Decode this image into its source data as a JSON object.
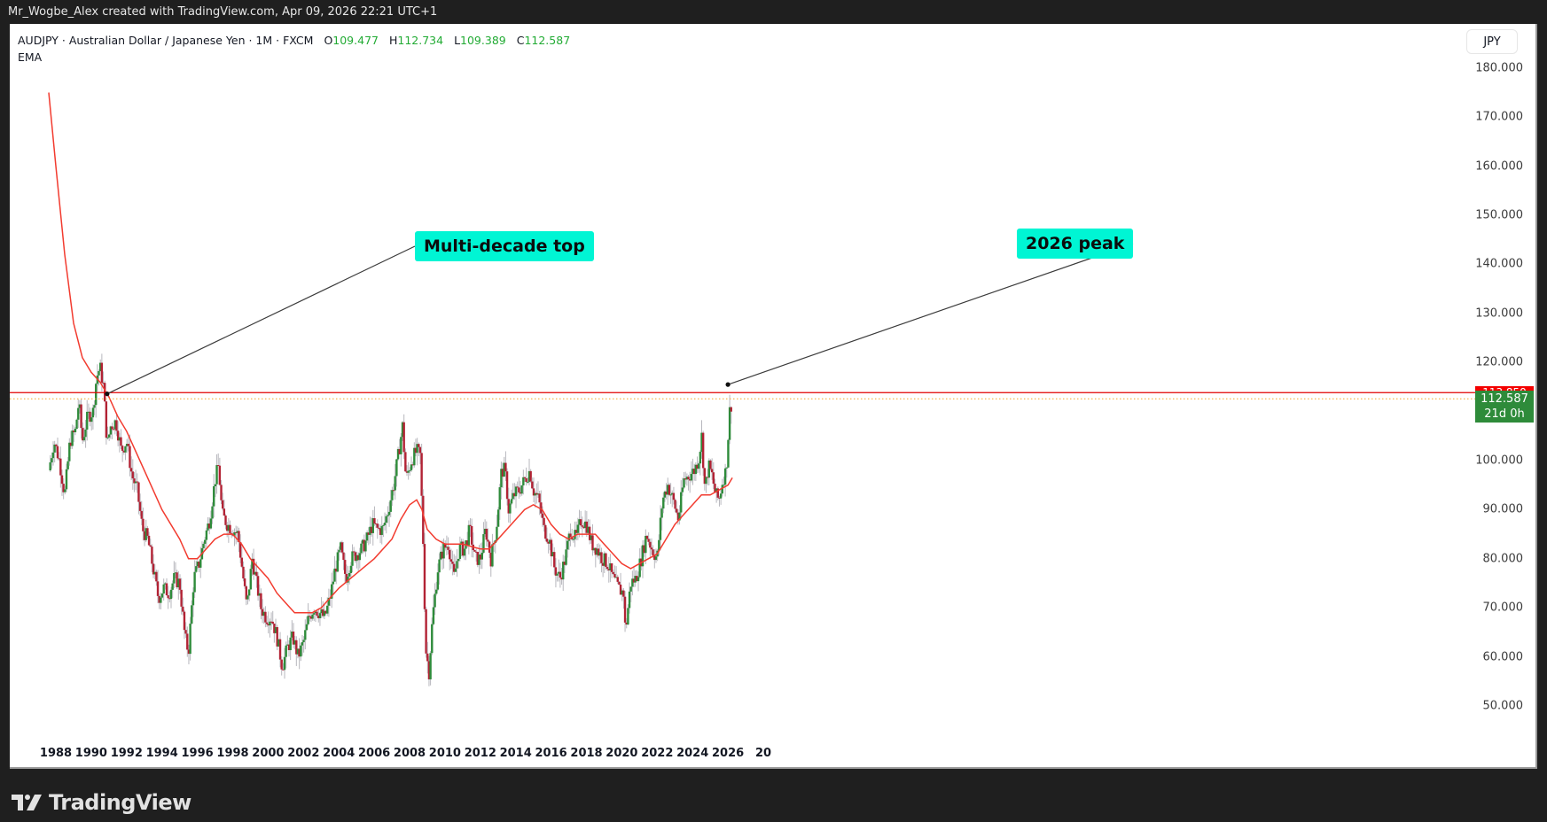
{
  "topbar": {
    "caption": "Mr_Wogbe_Alex created with TradingView.com, Apr 09, 2026 22:21 UTC+1"
  },
  "legend": {
    "symbol_line": "AUDJPY · Australian Dollar / Japanese Yen · 1M · FXCM",
    "open_label": "O",
    "open": "109.477",
    "high_label": "H",
    "high": "112.734",
    "low_label": "L",
    "low": "109.389",
    "close_label": "C",
    "close": "112.587",
    "indicator": "EMA"
  },
  "price_scale": {
    "currency": "JPY",
    "ticks": [
      "180.000",
      "170.000",
      "160.000",
      "150.000",
      "140.000",
      "130.000",
      "120.000",
      "100.000",
      "90.000",
      "80.000",
      "70.000",
      "60.000",
      "50.000"
    ],
    "last_price": "112.587",
    "countdown": "21d 0h",
    "hline_label": "113.850"
  },
  "time_scale": {
    "ticks": [
      "1988",
      "1990",
      "1992",
      "1994",
      "1996",
      "1998",
      "2000",
      "2002",
      "2004",
      "2006",
      "2008",
      "2010",
      "2012",
      "2014",
      "2016",
      "2018",
      "2020",
      "2022",
      "2024",
      "2026",
      "20"
    ]
  },
  "annotations": [
    {
      "text": "Multi-decade top",
      "anchor_year": 1990.9,
      "anchor_price": 113.6
    },
    {
      "text": "2026 peak",
      "anchor_year": 2026.0,
      "anchor_price": 115.5
    }
  ],
  "colors": {
    "up": "#2e8b3a",
    "down": "#b22234",
    "ema": "#f23b2f",
    "hline": "#e00000",
    "last_price_line": "#f5a623",
    "note_bg": "#00f5d4",
    "wick": "#b7b7bd"
  },
  "footer": {
    "brand": "TradingView"
  },
  "chart_data": {
    "type": "candlestick",
    "title": "AUDJPY · Australian Dollar / Japanese Yen · 1M · FXCM",
    "xlabel": "",
    "ylabel": "JPY",
    "ylim": [
      45,
      185
    ],
    "x_range": [
      1987.6,
      2027.5
    ],
    "timeframe": "1M",
    "last_ohlc": {
      "open": 109.477,
      "high": 112.734,
      "low": 109.389,
      "close": 112.587
    },
    "horizontal_line": 113.85,
    "close_path": [
      [
        1987.6,
        98
      ],
      [
        1987.9,
        104
      ],
      [
        1988.2,
        100
      ],
      [
        1988.5,
        93
      ],
      [
        1988.8,
        104
      ],
      [
        1989.1,
        106
      ],
      [
        1989.3,
        112
      ],
      [
        1989.5,
        104
      ],
      [
        1989.8,
        109
      ],
      [
        1990.1,
        110
      ],
      [
        1990.3,
        117
      ],
      [
        1990.5,
        119
      ],
      [
        1990.7,
        115
      ],
      [
        1990.9,
        103
      ],
      [
        1991.1,
        107
      ],
      [
        1991.4,
        108
      ],
      [
        1991.7,
        102
      ],
      [
        1992.0,
        104
      ],
      [
        1992.3,
        97
      ],
      [
        1992.6,
        94
      ],
      [
        1992.9,
        86
      ],
      [
        1993.2,
        84
      ],
      [
        1993.5,
        78
      ],
      [
        1993.8,
        72
      ],
      [
        1994.1,
        74
      ],
      [
        1994.4,
        73
      ],
      [
        1994.7,
        76
      ],
      [
        1995.0,
        75
      ],
      [
        1995.3,
        64
      ],
      [
        1995.5,
        61
      ],
      [
        1995.8,
        76
      ],
      [
        1996.1,
        79
      ],
      [
        1996.4,
        84
      ],
      [
        1996.7,
        88
      ],
      [
        1997.0,
        96
      ],
      [
        1997.2,
        99
      ],
      [
        1997.4,
        89
      ],
      [
        1997.7,
        87
      ],
      [
        1998.0,
        86
      ],
      [
        1998.3,
        85
      ],
      [
        1998.6,
        76
      ],
      [
        1998.8,
        70
      ],
      [
        1999.1,
        80
      ],
      [
        1999.3,
        76
      ],
      [
        1999.6,
        70
      ],
      [
        1999.9,
        68
      ],
      [
        2000.2,
        68
      ],
      [
        2000.5,
        64
      ],
      [
        2000.8,
        58
      ],
      [
        2001.1,
        62
      ],
      [
        2001.4,
        64
      ],
      [
        2001.7,
        60
      ],
      [
        2002.0,
        63
      ],
      [
        2002.3,
        68
      ],
      [
        2002.6,
        70
      ],
      [
        2002.9,
        69
      ],
      [
        2003.2,
        68
      ],
      [
        2003.5,
        72
      ],
      [
        2003.8,
        78
      ],
      [
        2004.1,
        82
      ],
      [
        2004.4,
        76
      ],
      [
        2004.7,
        80
      ],
      [
        2005.0,
        81
      ],
      [
        2005.3,
        82
      ],
      [
        2005.6,
        84
      ],
      [
        2005.9,
        87
      ],
      [
        2006.2,
        86
      ],
      [
        2006.5,
        86
      ],
      [
        2006.8,
        90
      ],
      [
        2007.1,
        95
      ],
      [
        2007.4,
        102
      ],
      [
        2007.6,
        107
      ],
      [
        2007.8,
        96
      ],
      [
        2008.1,
        100
      ],
      [
        2008.4,
        102
      ],
      [
        2008.6,
        101
      ],
      [
        2008.8,
        80
      ],
      [
        2008.9,
        62
      ],
      [
        2009.1,
        57
      ],
      [
        2009.3,
        68
      ],
      [
        2009.6,
        78
      ],
      [
        2009.9,
        82
      ],
      [
        2010.2,
        83
      ],
      [
        2010.5,
        76
      ],
      [
        2010.8,
        82
      ],
      [
        2011.1,
        82
      ],
      [
        2011.4,
        86
      ],
      [
        2011.7,
        80
      ],
      [
        2012.0,
        80
      ],
      [
        2012.3,
        86
      ],
      [
        2012.6,
        80
      ],
      [
        2012.9,
        86
      ],
      [
        2013.2,
        98
      ],
      [
        2013.4,
        98
      ],
      [
        2013.6,
        90
      ],
      [
        2013.9,
        93
      ],
      [
        2014.2,
        94
      ],
      [
        2014.5,
        96
      ],
      [
        2014.8,
        98
      ],
      [
        2015.0,
        94
      ],
      [
        2015.3,
        92
      ],
      [
        2015.6,
        86
      ],
      [
        2015.9,
        84
      ],
      [
        2016.2,
        78
      ],
      [
        2016.5,
        76
      ],
      [
        2016.8,
        80
      ],
      [
        2017.1,
        86
      ],
      [
        2017.4,
        84
      ],
      [
        2017.7,
        88
      ],
      [
        2018.0,
        87
      ],
      [
        2018.3,
        83
      ],
      [
        2018.6,
        82
      ],
      [
        2018.9,
        80
      ],
      [
        2019.2,
        79
      ],
      [
        2019.5,
        76
      ],
      [
        2019.8,
        74
      ],
      [
        2020.1,
        73
      ],
      [
        2020.2,
        65
      ],
      [
        2020.5,
        75
      ],
      [
        2020.8,
        76
      ],
      [
        2021.1,
        80
      ],
      [
        2021.4,
        85
      ],
      [
        2021.7,
        82
      ],
      [
        2022.0,
        80
      ],
      [
        2022.3,
        92
      ],
      [
        2022.6,
        95
      ],
      [
        2022.9,
        92
      ],
      [
        2023.2,
        88
      ],
      [
        2023.5,
        96
      ],
      [
        2023.8,
        97
      ],
      [
        2024.1,
        98
      ],
      [
        2024.4,
        101
      ],
      [
        2024.5,
        106
      ],
      [
        2024.7,
        94
      ],
      [
        2024.9,
        99
      ],
      [
        2025.1,
        97
      ],
      [
        2025.3,
        93
      ],
      [
        2025.5,
        92
      ],
      [
        2025.7,
        96
      ],
      [
        2025.9,
        98
      ],
      [
        2026.0,
        104
      ],
      [
        2026.1,
        110
      ],
      [
        2026.25,
        112.587
      ]
    ],
    "ema_path": [
      [
        1987.6,
        175
      ],
      [
        1988.0,
        160
      ],
      [
        1988.5,
        142
      ],
      [
        1989.0,
        128
      ],
      [
        1989.5,
        121
      ],
      [
        1990.0,
        118
      ],
      [
        1990.5,
        116
      ],
      [
        1991.0,
        113
      ],
      [
        1991.5,
        109
      ],
      [
        1992.0,
        106
      ],
      [
        1993.0,
        98
      ],
      [
        1994.0,
        90
      ],
      [
        1995.0,
        84
      ],
      [
        1995.5,
        80
      ],
      [
        1996.0,
        80
      ],
      [
        1996.5,
        82
      ],
      [
        1997.0,
        84
      ],
      [
        1997.5,
        85
      ],
      [
        1998.0,
        85
      ],
      [
        1998.5,
        83
      ],
      [
        1999.0,
        80
      ],
      [
        1999.5,
        78
      ],
      [
        2000.0,
        76
      ],
      [
        2000.5,
        73
      ],
      [
        2001.0,
        71
      ],
      [
        2001.5,
        69
      ],
      [
        2002.0,
        69
      ],
      [
        2002.5,
        69
      ],
      [
        2003.0,
        70
      ],
      [
        2003.5,
        72
      ],
      [
        2004.0,
        74
      ],
      [
        2005.0,
        77
      ],
      [
        2006.0,
        80
      ],
      [
        2007.0,
        84
      ],
      [
        2007.5,
        88
      ],
      [
        2008.0,
        91
      ],
      [
        2008.4,
        92
      ],
      [
        2008.7,
        90
      ],
      [
        2009.0,
        86
      ],
      [
        2009.5,
        84
      ],
      [
        2010.0,
        83
      ],
      [
        2011.0,
        83
      ],
      [
        2012.0,
        82
      ],
      [
        2012.5,
        82
      ],
      [
        2013.0,
        84
      ],
      [
        2013.5,
        86
      ],
      [
        2014.0,
        88
      ],
      [
        2014.5,
        90
      ],
      [
        2015.0,
        91
      ],
      [
        2015.5,
        90
      ],
      [
        2016.0,
        87
      ],
      [
        2016.5,
        85
      ],
      [
        2017.0,
        84
      ],
      [
        2017.5,
        85
      ],
      [
        2018.0,
        85
      ],
      [
        2018.5,
        85
      ],
      [
        2019.0,
        83
      ],
      [
        2019.5,
        81
      ],
      [
        2020.0,
        79
      ],
      [
        2020.5,
        78
      ],
      [
        2021.0,
        79
      ],
      [
        2021.5,
        80
      ],
      [
        2022.0,
        81
      ],
      [
        2022.5,
        84
      ],
      [
        2023.0,
        87
      ],
      [
        2023.5,
        89
      ],
      [
        2024.0,
        91
      ],
      [
        2024.5,
        93
      ],
      [
        2025.0,
        93
      ],
      [
        2025.5,
        94
      ],
      [
        2026.0,
        95
      ],
      [
        2026.25,
        96.5
      ]
    ]
  }
}
